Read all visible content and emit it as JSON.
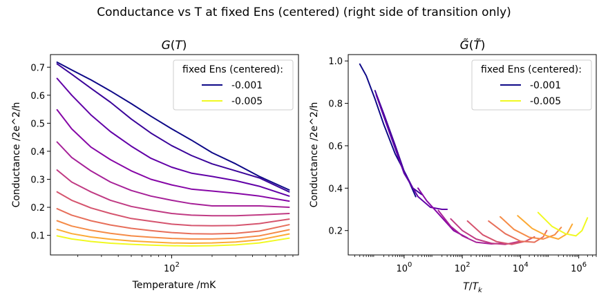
{
  "figure": {
    "suptitle": "Conductance vs T at fixed Ens (centered) (right side of transition only)"
  },
  "legend": {
    "title": "fixed Ens (centered):",
    "entries": [
      {
        "label": "-0.001",
        "color": "#0d0887"
      },
      {
        "label": "-0.005",
        "color": "#f0f921"
      }
    ]
  },
  "chart_data": [
    {
      "type": "line",
      "title": "G(T)",
      "xlabel": "Temperature /mK",
      "ylabel": "Conductance /2e^2/h",
      "xscale": "log",
      "xlim": [
        12.5,
        880
      ],
      "ylim": [
        0.03,
        0.745
      ],
      "xticks": [
        {
          "value": 100,
          "label": "10^2"
        }
      ],
      "yticks": [
        0.1,
        0.2,
        0.3,
        0.4,
        0.5,
        0.6,
        0.7
      ],
      "grid": false,
      "legend_position": "top-right",
      "x": [
        14,
        18,
        25,
        35,
        50,
        70,
        100,
        140,
        200,
        300,
        450,
        750
      ],
      "series": [
        {
          "color": "#0d0887",
          "values": [
            0.718,
            0.69,
            0.655,
            0.615,
            0.57,
            0.525,
            0.48,
            0.44,
            0.395,
            0.355,
            0.31,
            0.262
          ]
        },
        {
          "color": "#3a049a",
          "values": [
            0.712,
            0.675,
            0.625,
            0.575,
            0.515,
            0.465,
            0.42,
            0.385,
            0.355,
            0.33,
            0.305,
            0.255
          ]
        },
        {
          "color": "#6100a7",
          "values": [
            0.66,
            0.6,
            0.53,
            0.47,
            0.418,
            0.375,
            0.343,
            0.322,
            0.31,
            0.295,
            0.275,
            0.24
          ]
        },
        {
          "color": "#8606a6",
          "values": [
            0.548,
            0.48,
            0.415,
            0.37,
            0.33,
            0.3,
            0.28,
            0.265,
            0.258,
            0.25,
            0.24,
            0.222
          ]
        },
        {
          "color": "#a62098",
          "values": [
            0.433,
            0.378,
            0.33,
            0.29,
            0.26,
            0.24,
            0.225,
            0.213,
            0.205,
            0.205,
            0.205,
            0.2
          ]
        },
        {
          "color": "#c03a83",
          "values": [
            0.333,
            0.29,
            0.255,
            0.225,
            0.203,
            0.19,
            0.178,
            0.172,
            0.17,
            0.17,
            0.173,
            0.178
          ]
        },
        {
          "color": "#d5546e",
          "values": [
            0.255,
            0.225,
            0.198,
            0.178,
            0.16,
            0.15,
            0.14,
            0.135,
            0.134,
            0.135,
            0.142,
            0.158
          ]
        },
        {
          "color": "#e76f5a",
          "values": [
            0.195,
            0.172,
            0.152,
            0.137,
            0.125,
            0.117,
            0.11,
            0.106,
            0.105,
            0.107,
            0.115,
            0.138
          ]
        },
        {
          "color": "#f58b47",
          "values": [
            0.152,
            0.133,
            0.118,
            0.107,
            0.098,
            0.093,
            0.089,
            0.087,
            0.087,
            0.09,
            0.098,
            0.12
          ]
        },
        {
          "color": "#fcaa34",
          "values": [
            0.121,
            0.106,
            0.094,
            0.086,
            0.08,
            0.076,
            0.073,
            0.072,
            0.073,
            0.076,
            0.084,
            0.105
          ]
        },
        {
          "color": "#f0f921",
          "values": [
            0.098,
            0.087,
            0.078,
            0.072,
            0.068,
            0.065,
            0.063,
            0.062,
            0.063,
            0.066,
            0.073,
            0.09
          ]
        }
      ]
    },
    {
      "type": "line",
      "title": "G̃(T̃)",
      "xlabel": "T/T_k",
      "ylabel": "Conductance /2e^2/h",
      "xscale": "log",
      "xlim": [
        0.012,
        4000000
      ],
      "ylim": [
        0.085,
        1.03
      ],
      "xticks": [
        {
          "value": 1,
          "label": "10^0"
        },
        {
          "value": 100,
          "label": "10^2"
        },
        {
          "value": 10000,
          "label": "10^4"
        },
        {
          "value": 1000000,
          "label": "10^6"
        }
      ],
      "yticks": [
        0.2,
        0.4,
        0.6,
        0.8,
        1.0
      ],
      "grid": false,
      "legend_position": "top-right",
      "series": [
        {
          "color": "#0d0887",
          "points": [
            [
              0.03,
              0.985
            ],
            [
              0.05,
              0.93
            ],
            [
              0.1,
              0.82
            ],
            [
              0.2,
              0.7
            ],
            [
              0.5,
              0.56
            ],
            [
              1.2,
              0.46
            ],
            [
              2.5,
              0.36
            ]
          ]
        },
        {
          "color": "#3a049a",
          "points": [
            [
              0.1,
              0.86
            ],
            [
              0.2,
              0.75
            ],
            [
              0.5,
              0.6
            ],
            [
              1,
              0.48
            ],
            [
              2,
              0.4
            ],
            [
              4,
              0.37
            ]
          ]
        },
        {
          "color": "#6100a7",
          "points": [
            [
              0.11,
              0.84
            ],
            [
              0.3,
              0.67
            ],
            [
              1,
              0.47
            ],
            [
              3,
              0.36
            ],
            [
              8,
              0.31
            ],
            [
              20,
              0.3
            ],
            [
              30,
              0.3
            ]
          ]
        },
        {
          "color": "#8606a6",
          "points": [
            [
              3,
              0.4
            ],
            [
              6,
              0.34
            ],
            [
              15,
              0.28
            ],
            [
              50,
              0.2
            ],
            [
              150,
              0.165
            ]
          ]
        },
        {
          "color": "#a62098",
          "points": [
            [
              15,
              0.295
            ],
            [
              40,
              0.22
            ],
            [
              100,
              0.175
            ],
            [
              300,
              0.145
            ],
            [
              1000,
              0.137
            ],
            [
              2500,
              0.14
            ]
          ]
        },
        {
          "color": "#c03a83",
          "points": [
            [
              40,
              0.255
            ],
            [
              100,
              0.2
            ],
            [
              300,
              0.16
            ],
            [
              1000,
              0.14
            ],
            [
              3000,
              0.135
            ],
            [
              10000,
              0.15
            ]
          ]
        },
        {
          "color": "#d5546e",
          "points": [
            [
              150,
              0.245
            ],
            [
              500,
              0.18
            ],
            [
              1500,
              0.148
            ],
            [
              5000,
              0.135
            ],
            [
              15000,
              0.15
            ],
            [
              30000,
              0.17
            ]
          ]
        },
        {
          "color": "#e76f5a",
          "points": [
            [
              800,
              0.245
            ],
            [
              3000,
              0.185
            ],
            [
              10000,
              0.15
            ],
            [
              30000,
              0.145
            ],
            [
              60000,
              0.17
            ],
            [
              80000,
              0.2
            ]
          ]
        },
        {
          "color": "#f58b47",
          "points": [
            [
              2000,
              0.265
            ],
            [
              6000,
              0.205
            ],
            [
              20000,
              0.168
            ],
            [
              60000,
              0.16
            ],
            [
              150000,
              0.18
            ],
            [
              250000,
              0.215
            ]
          ]
        },
        {
          "color": "#fcaa34",
          "points": [
            [
              8000,
              0.27
            ],
            [
              25000,
              0.21
            ],
            [
              80000,
              0.175
            ],
            [
              200000,
              0.16
            ],
            [
              400000,
              0.185
            ],
            [
              600000,
              0.23
            ]
          ]
        },
        {
          "color": "#f0f921",
          "points": [
            [
              40000,
              0.285
            ],
            [
              120000,
              0.22
            ],
            [
              350000,
              0.185
            ],
            [
              800000,
              0.175
            ],
            [
              1300000,
              0.2
            ],
            [
              2000000,
              0.26
            ]
          ]
        }
      ]
    }
  ]
}
